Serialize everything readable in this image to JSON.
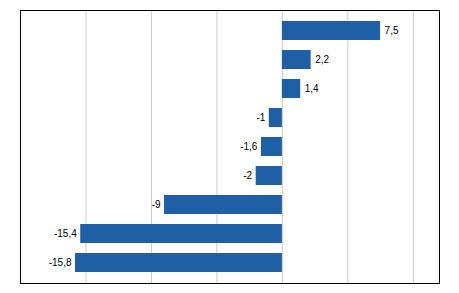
{
  "chart_data": {
    "type": "bar",
    "orientation": "horizontal",
    "categories": [
      null,
      null,
      null,
      null,
      null,
      null,
      null,
      null,
      null
    ],
    "values": [
      7.5,
      2.2,
      1.4,
      -1,
      -1.6,
      -2,
      -9,
      -15.4,
      -15.8
    ],
    "value_labels": [
      "7,5",
      "2,2",
      "1,4",
      "-1",
      "-1,6",
      "-2",
      "-9",
      "-15,4",
      "-15,8"
    ],
    "color": "#1f5fa6",
    "xlim": [
      -20,
      12
    ],
    "xticks": [
      -20,
      -15,
      -10,
      -5,
      0,
      5,
      10
    ],
    "grid": true,
    "tick_labels": false,
    "data_labels": true
  }
}
